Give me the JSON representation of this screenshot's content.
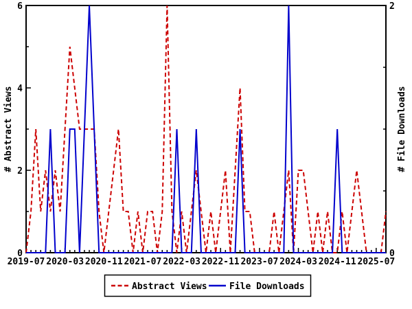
{
  "chart_data": {
    "type": "line",
    "title": "",
    "x": [
      "2019-07",
      "2019-08",
      "2019-09",
      "2019-10",
      "2019-11",
      "2019-12",
      "2020-01",
      "2020-02",
      "2020-03",
      "2020-04",
      "2020-05",
      "2020-06",
      "2020-07",
      "2020-08",
      "2020-09",
      "2020-10",
      "2020-11",
      "2020-12",
      "2021-01",
      "2021-02",
      "2021-03",
      "2021-04",
      "2021-05",
      "2021-06",
      "2021-07",
      "2021-08",
      "2021-09",
      "2021-10",
      "2021-11",
      "2021-12",
      "2022-01",
      "2022-02",
      "2022-03",
      "2022-04",
      "2022-05",
      "2022-06",
      "2022-07",
      "2022-08",
      "2022-09",
      "2022-10",
      "2022-11",
      "2022-12",
      "2023-01",
      "2023-02",
      "2023-03",
      "2023-04",
      "2023-05",
      "2023-06",
      "2023-07",
      "2023-08",
      "2023-09",
      "2023-10",
      "2023-11",
      "2023-12",
      "2024-01",
      "2024-02",
      "2024-03",
      "2024-04",
      "2024-05",
      "2024-06",
      "2024-07",
      "2024-08",
      "2024-09",
      "2024-10",
      "2024-11",
      "2024-12",
      "2025-01",
      "2025-02",
      "2025-03",
      "2025-04",
      "2025-05",
      "2025-06",
      "2025-07",
      "2025-08",
      "2025-09"
    ],
    "series": [
      {
        "name": "Abstract Views",
        "axis": "left",
        "color": "#cc0000",
        "style": "dashed",
        "values": [
          0,
          1,
          3,
          1,
          2,
          1,
          2,
          1,
          3,
          5,
          4,
          3,
          3,
          3,
          3,
          1,
          0,
          1,
          2,
          3,
          1,
          1,
          0,
          1,
          0,
          1,
          1,
          0,
          1,
          6,
          1,
          0,
          1,
          0,
          1,
          2,
          1,
          0,
          1,
          0,
          1,
          2,
          0,
          2,
          4,
          1,
          1,
          0,
          0,
          0,
          0,
          1,
          0,
          1,
          2,
          0,
          2,
          2,
          1,
          0,
          1,
          0,
          1,
          0,
          0,
          1,
          0,
          1,
          2,
          1,
          0,
          0,
          0,
          0,
          1
        ]
      },
      {
        "name": "File Downloads",
        "axis": "right",
        "color": "#0000cc",
        "style": "solid",
        "values": [
          0,
          0,
          0,
          0,
          0,
          1,
          0,
          0,
          0,
          1,
          1,
          0,
          1,
          2,
          1,
          0,
          0,
          0,
          0,
          0,
          0,
          0,
          0,
          0,
          0,
          0,
          0,
          0,
          0,
          0,
          0,
          1,
          0,
          0,
          0,
          1,
          0,
          0,
          0,
          0,
          0,
          0,
          0,
          0,
          1,
          0,
          0,
          0,
          0,
          0,
          0,
          0,
          0,
          0,
          2,
          0,
          0,
          0,
          0,
          0,
          0,
          0,
          0,
          0,
          1,
          0,
          0,
          0,
          0,
          0,
          0,
          0,
          0,
          0,
          0
        ]
      }
    ],
    "left_axis": {
      "label": "# Abstract Views",
      "min": 0,
      "max": 6,
      "major_ticks": [
        0,
        2,
        4,
        6
      ],
      "minor_ticks": [
        1,
        3,
        5
      ]
    },
    "right_axis": {
      "label": "# File Downloads",
      "min": 0,
      "max": 2,
      "labeled_ticks": [
        0,
        2
      ],
      "minor_ticks": [
        0.5,
        1,
        1.5
      ]
    },
    "x_axis": {
      "tick_every_months": 1,
      "label_every_months": 8,
      "tick_labels": [
        "2019-07",
        "2020-03",
        "2020-11",
        "2021-07",
        "2022-03",
        "2022-11",
        "2023-07",
        "2024-03",
        "2024-11",
        "2025-07"
      ]
    },
    "legend": {
      "position": "bottom",
      "entries": [
        {
          "label": "Abstract Views",
          "color": "#cc0000",
          "style": "dashed"
        },
        {
          "label": "File Downloads",
          "color": "#0000cc",
          "style": "solid"
        }
      ]
    },
    "colors": {
      "frame": "#000000",
      "background": "#ffffff",
      "abstract_views": "#cc0000",
      "file_downloads": "#0000cc"
    }
  }
}
